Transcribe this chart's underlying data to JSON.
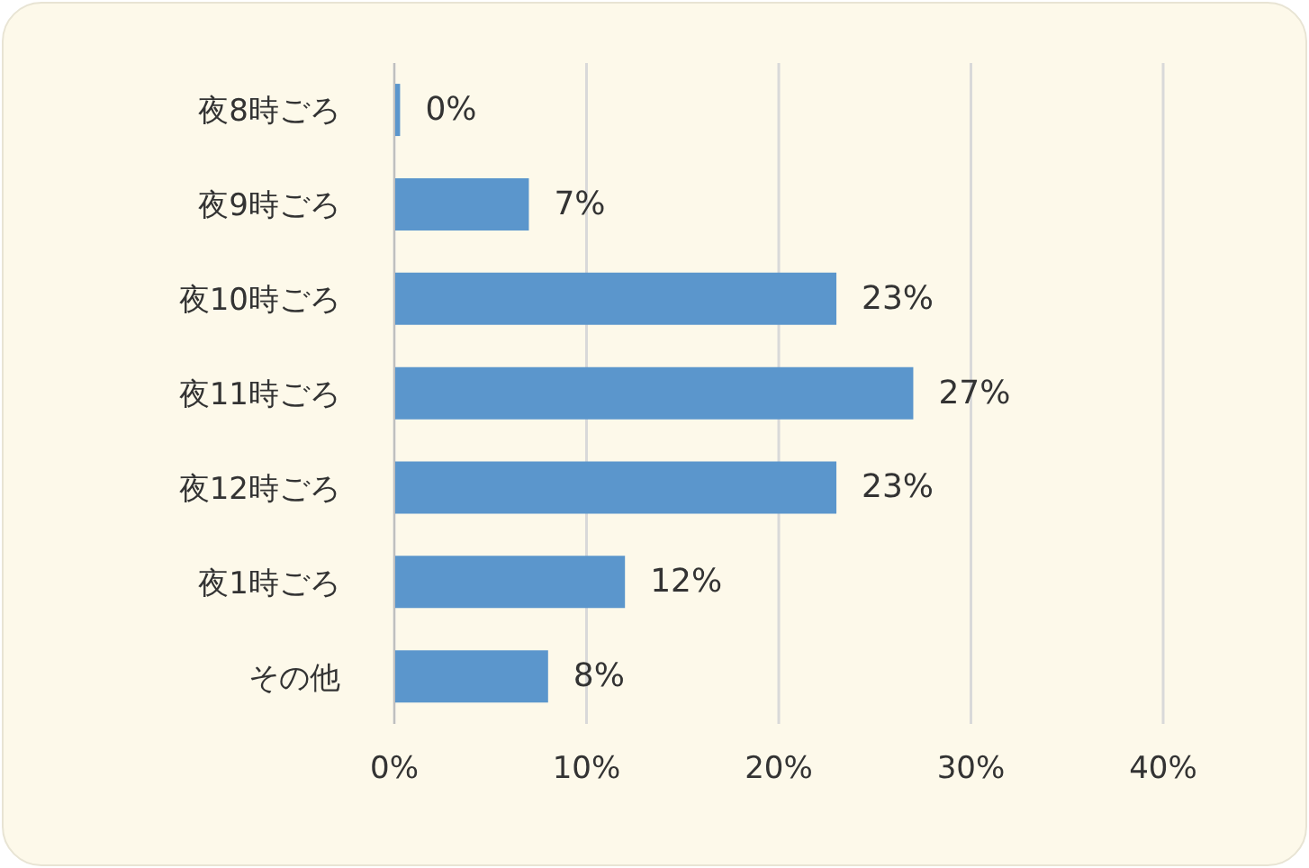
{
  "chart_data": {
    "type": "bar",
    "orientation": "horizontal",
    "categories": [
      "夜8時ごろ",
      "夜9時ごろ",
      "夜10時ごろ",
      "夜11時ごろ",
      "夜12時ごろ",
      "夜1時ごろ",
      "その他"
    ],
    "values": [
      0.3,
      7,
      23,
      27,
      23,
      12,
      8
    ],
    "value_labels": [
      "0%",
      "7%",
      "23%",
      "27%",
      "23%",
      "12%",
      "8%"
    ],
    "color": "#5b96cc",
    "xlim": [
      0,
      40
    ],
    "xticks": [
      {
        "value": 0,
        "label": "0%"
      },
      {
        "value": 10,
        "label": "10%"
      },
      {
        "value": 20,
        "label": "20%"
      },
      {
        "value": 30,
        "label": "30%"
      },
      {
        "value": 40,
        "label": "40%"
      }
    ],
    "grid": "x"
  }
}
